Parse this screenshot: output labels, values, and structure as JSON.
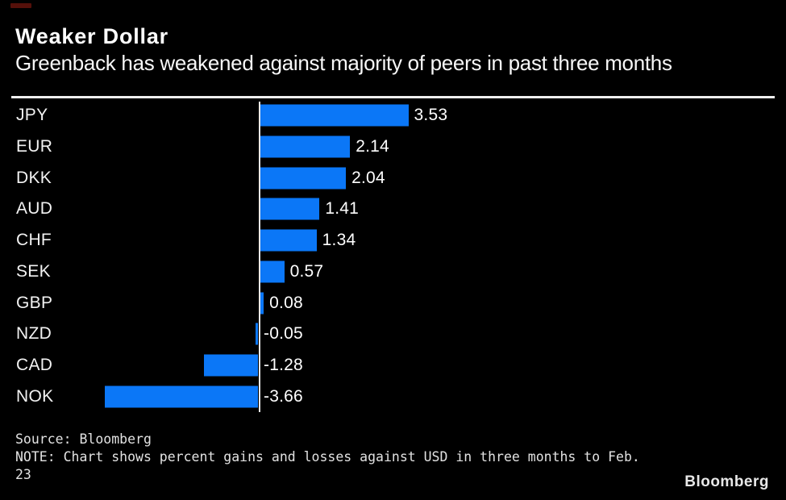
{
  "colors": {
    "background": "#000000",
    "bar_blue": "#0b77f7",
    "title_text": "#ffffff",
    "divider": "#efefef",
    "axis_line": "#e8e8e8",
    "footer_text": "#e2e2e2",
    "accent_red": "#55100a"
  },
  "header": {
    "title": "Weaker Dollar",
    "subtitle": "Greenback has weakened against majority of peers in past three months"
  },
  "chart_data": {
    "type": "bar",
    "orientation": "horizontal",
    "unit": "percent vs USD",
    "title": "Weaker Dollar",
    "baseline": 0,
    "value_axis_ticks_visible": false,
    "grid": false,
    "legend": false,
    "categories": [
      "JPY",
      "EUR",
      "DKK",
      "AUD",
      "CHF",
      "SEK",
      "GBP",
      "NZD",
      "CAD",
      "NOK"
    ],
    "values": [
      3.53,
      2.14,
      2.04,
      1.41,
      1.34,
      0.57,
      0.08,
      -0.05,
      -1.28,
      -3.66
    ],
    "value_labels": [
      "3.53",
      "2.14",
      "2.04",
      "1.41",
      "1.34",
      "0.57",
      "0.08",
      "-0.05",
      "-1.28",
      "-3.66"
    ],
    "bar_color": "#0b77f7"
  },
  "footer": {
    "source": "Source: Bloomberg",
    "note_lines": [
      "NOTE: Chart shows percent gains and losses against USD in three months to Feb.",
      "23"
    ],
    "brand": "Bloomberg"
  }
}
